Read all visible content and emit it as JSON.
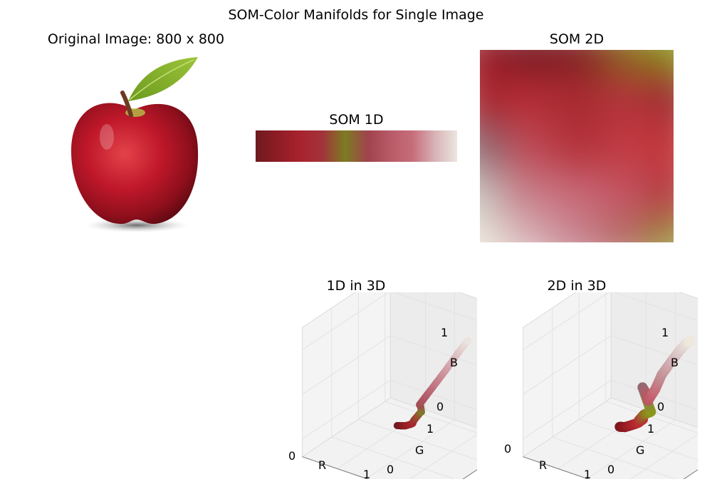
{
  "figure": {
    "title": "SOM-Color Manifolds for Single Image"
  },
  "panels": {
    "original": {
      "title": "Original Image: 800 x 800"
    },
    "som1d": {
      "title": "SOM 1D"
    },
    "som2d": {
      "title": "SOM 2D"
    },
    "som1d_3d": {
      "title": "1D in 3D"
    },
    "som2d_3d": {
      "title": "2D in 3D"
    }
  },
  "chart_data": [
    {
      "type": "heatmap",
      "title": "SOM 1D",
      "colors": [
        "#6e1a1f",
        "#8f1c25",
        "#a8232e",
        "#a2333a",
        "#7c7c22",
        "#a0434c",
        "#b85a67",
        "#c66d7a",
        "#d8b2b6",
        "#ebe6e0"
      ]
    },
    {
      "type": "heatmap",
      "title": "SOM 2D",
      "grid_colors": [
        [
          "#9b1d28",
          "#771822",
          "#7f1e22",
          "#8a6a1e",
          "#8a9a18"
        ],
        [
          "#a8232e",
          "#b62c34",
          "#a72a30",
          "#b2343b",
          "#9c2c30"
        ],
        [
          "#8d6b73",
          "#be4a56",
          "#b23039",
          "#c23b42",
          "#c43538"
        ],
        [
          "#c7c2bc",
          "#c77e89",
          "#c86a78",
          "#c25462",
          "#b33a3e"
        ],
        [
          "#ece8dc",
          "#d9b8bc",
          "#c88893",
          "#b56e68",
          "#9a9a3a"
        ]
      ]
    },
    {
      "type": "scatter",
      "title": "1D in 3D",
      "xlabel": "R",
      "ylabel": "G",
      "zlabel": "B",
      "xticks": [
        "0",
        "1"
      ],
      "yticks": [
        "0",
        "1"
      ],
      "zticks": [
        "0",
        "1"
      ],
      "xlim": [
        0,
        1
      ],
      "ylim": [
        0,
        1
      ],
      "zlim": [
        0,
        1
      ],
      "points": [
        {
          "r": 0.43,
          "g": 0.1,
          "b": 0.12
        },
        {
          "r": 0.5,
          "g": 0.11,
          "b": 0.13
        },
        {
          "r": 0.56,
          "g": 0.12,
          "b": 0.14
        },
        {
          "r": 0.62,
          "g": 0.14,
          "b": 0.16
        },
        {
          "r": 0.66,
          "g": 0.14,
          "b": 0.18
        },
        {
          "r": 0.64,
          "g": 0.18,
          "b": 0.19
        },
        {
          "r": 0.62,
          "g": 0.24,
          "b": 0.19
        },
        {
          "r": 0.56,
          "g": 0.4,
          "b": 0.18
        },
        {
          "r": 0.49,
          "g": 0.49,
          "b": 0.13
        },
        {
          "r": 0.56,
          "g": 0.4,
          "b": 0.24
        },
        {
          "r": 0.63,
          "g": 0.3,
          "b": 0.32
        },
        {
          "r": 0.7,
          "g": 0.36,
          "b": 0.42
        },
        {
          "r": 0.76,
          "g": 0.48,
          "b": 0.53
        },
        {
          "r": 0.82,
          "g": 0.62,
          "b": 0.65
        },
        {
          "r": 0.87,
          "g": 0.76,
          "b": 0.77
        },
        {
          "r": 0.92,
          "g": 0.89,
          "b": 0.87
        }
      ]
    },
    {
      "type": "scatter",
      "title": "2D in 3D",
      "xlabel": "R",
      "ylabel": "G",
      "zlabel": "B",
      "xticks": [
        "0",
        "1"
      ],
      "yticks": [
        "0",
        "1"
      ],
      "zticks": [
        "0",
        "1"
      ],
      "xlim": [
        0,
        1
      ],
      "ylim": [
        0,
        1
      ],
      "zlim": [
        0,
        1
      ],
      "points": [
        {
          "r": 0.47,
          "g": 0.09,
          "b": 0.12
        },
        {
          "r": 0.55,
          "g": 0.1,
          "b": 0.13
        },
        {
          "r": 0.61,
          "g": 0.12,
          "b": 0.15
        },
        {
          "r": 0.67,
          "g": 0.15,
          "b": 0.17
        },
        {
          "r": 0.72,
          "g": 0.17,
          "b": 0.19
        },
        {
          "r": 0.76,
          "g": 0.21,
          "b": 0.22
        },
        {
          "r": 0.7,
          "g": 0.2,
          "b": 0.2
        },
        {
          "r": 0.6,
          "g": 0.4,
          "b": 0.16
        },
        {
          "r": 0.54,
          "g": 0.6,
          "b": 0.1
        },
        {
          "r": 0.56,
          "g": 0.42,
          "b": 0.45
        },
        {
          "r": 0.66,
          "g": 0.38,
          "b": 0.42
        },
        {
          "r": 0.74,
          "g": 0.33,
          "b": 0.38
        },
        {
          "r": 0.78,
          "g": 0.42,
          "b": 0.48
        },
        {
          "r": 0.76,
          "g": 0.56,
          "b": 0.58
        },
        {
          "r": 0.82,
          "g": 0.68,
          "b": 0.7
        },
        {
          "r": 0.86,
          "g": 0.78,
          "b": 0.78
        },
        {
          "r": 0.9,
          "g": 0.86,
          "b": 0.84
        },
        {
          "r": 0.93,
          "g": 0.91,
          "b": 0.86
        }
      ]
    }
  ]
}
